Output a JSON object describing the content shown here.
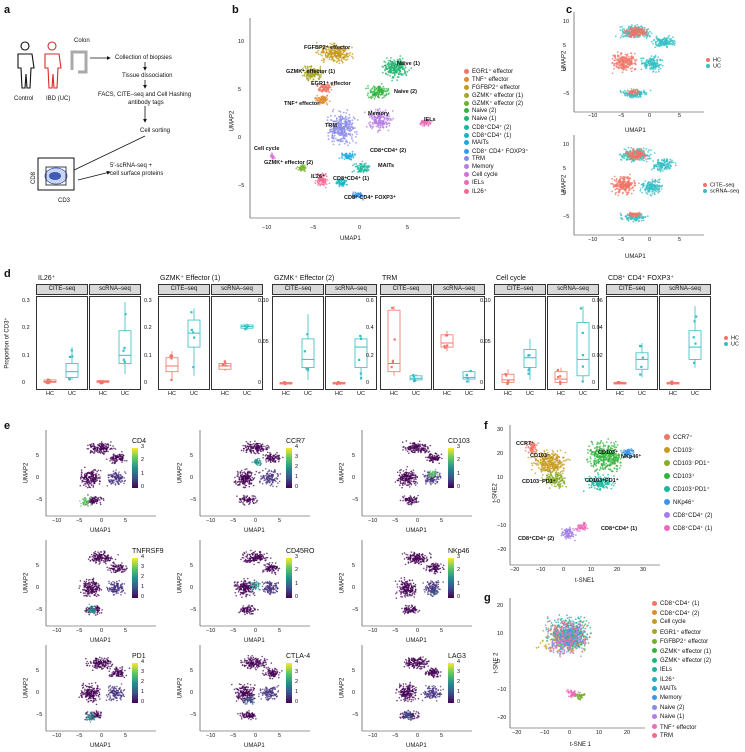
{
  "panel_a": {
    "label": "a",
    "colon": "Colon",
    "control": "Control",
    "ibd": "IBD (UC)",
    "steps": [
      "Collection of biopsies",
      "Tissue dissociation",
      "FACS, CITE–seq and Cell Hashing",
      "antibody tags",
      "Cell sorting",
      "5′-scRNA-seq +",
      "cell surface proteins"
    ],
    "cd8": "CD8",
    "cd3": "CD3"
  },
  "panel_b": {
    "label": "b",
    "ylabel": "UMAP2",
    "xlabel": "UMAP1",
    "yticks": [
      "10",
      "5",
      "0",
      "−5"
    ],
    "xticks": [
      "−10",
      "−5",
      "0",
      "5"
    ],
    "cluster_labels": [
      "FGFBP2⁺ effector",
      "GZMK⁺ effector (1)",
      "EGR1⁺ effector",
      "TNF⁺ effector",
      "Naive (1)",
      "Naive (2)",
      "TRM",
      "Memory",
      "IELs",
      "Cell cycle",
      "CD8⁺CD4⁺ (2)",
      "MAITs",
      "GZMK⁺ effector (2)",
      "IL26⁺",
      "CD8⁺CD4⁺ (1)",
      "CD8⁺ CD4⁺ FOXP3⁺"
    ],
    "legend": [
      {
        "label": "EGR1⁺ effector",
        "color": "#f07467"
      },
      {
        "label": "TNF⁺ effector",
        "color": "#e08a2e"
      },
      {
        "label": "FGFBP2⁺ effector",
        "color": "#c79a1e"
      },
      {
        "label": "GZMK⁺ effector (1)",
        "color": "#a5a628"
      },
      {
        "label": "GZMK⁺ effector (2)",
        "color": "#72b02a"
      },
      {
        "label": "Naive (2)",
        "color": "#34b33e"
      },
      {
        "label": "Naive (1)",
        "color": "#1fb46f"
      },
      {
        "label": "CD8⁺CD4⁺ (2)",
        "color": "#1bb59c"
      },
      {
        "label": "CD8⁺CD4⁺ (1)",
        "color": "#16b4c2"
      },
      {
        "label": "MAITs",
        "color": "#1ba9e0"
      },
      {
        "label": "CD8⁺ CD4⁺ FOXP3⁺",
        "color": "#3d95e8"
      },
      {
        "label": "TRM",
        "color": "#8a89e8"
      },
      {
        "label": "Memory",
        "color": "#b67de6"
      },
      {
        "label": "Cell cycle",
        "color": "#d96fd6"
      },
      {
        "label": "IELs",
        "color": "#ec6bb8"
      },
      {
        "label": "IL26⁺",
        "color": "#f06b93"
      }
    ]
  },
  "panel_c": {
    "label": "c",
    "ylabel": "UMAP2",
    "xlabel": "UMAP1",
    "xticks": [
      "−10",
      "−5",
      "0",
      "5"
    ],
    "yticks": [
      "10",
      "5",
      "0",
      "−5"
    ],
    "legend_top": [
      {
        "label": "HC",
        "color": "#f07467"
      },
      {
        "label": "UC",
        "color": "#33bfc4"
      }
    ],
    "legend_bottom": [
      {
        "label": "CITE–seq",
        "color": "#f07467"
      },
      {
        "label": "scRNA–seq",
        "color": "#33bfc4"
      }
    ]
  },
  "panel_d": {
    "label": "d",
    "ylabel": "Proportion of CD3⁺",
    "groups": [
      {
        "title": "IL26⁺",
        "yticks": [
          "0.3",
          "0.2",
          "0.1",
          "0"
        ]
      },
      {
        "title": "GZMK⁺ Effector (1)",
        "yticks": [
          "0.3",
          "0.2",
          "0.1",
          "0"
        ]
      },
      {
        "title": "GZMK⁺ Effector (2)",
        "yticks": [
          "0.10",
          "0.05",
          "0"
        ]
      },
      {
        "title": "TRM",
        "yticks": [
          "0.6",
          "0.4",
          "0.2",
          "0"
        ]
      },
      {
        "title": "Cell cycle",
        "yticks": [
          "0.10",
          "0.05",
          "0"
        ]
      },
      {
        "title": "CD8⁺ CD4⁺ FOXP3⁺",
        "yticks": [
          "0.06",
          "0.04",
          "0.02",
          "0"
        ]
      }
    ],
    "facets": [
      "CITE–seq",
      "scRNA–seq"
    ],
    "xcats": [
      "HC",
      "UC"
    ],
    "legend": [
      {
        "label": "HC",
        "color": "#f07467"
      },
      {
        "label": "UC",
        "color": "#33bfc4"
      }
    ]
  },
  "panel_e": {
    "label": "e",
    "ylabel": "UMAP2",
    "xlabel": "UMAP1",
    "xticks": [
      "−10",
      "−5",
      "0",
      "5"
    ],
    "yticks": [
      "5",
      "0",
      "−5"
    ],
    "markers": [
      {
        "name": "CD4",
        "scale": [
          "3",
          "2",
          "1",
          "0"
        ]
      },
      {
        "name": "CCR7",
        "scale": [
          "4",
          "3",
          "2",
          "1",
          "0"
        ]
      },
      {
        "name": "CD103",
        "scale": [
          "3",
          "2",
          "1",
          "0"
        ]
      },
      {
        "name": "TNFRSF9",
        "scale": [
          "4",
          "3",
          "2",
          "1",
          "0"
        ]
      },
      {
        "name": "CD45RO",
        "scale": [
          "3",
          "2",
          "1",
          "0"
        ]
      },
      {
        "name": "NKp46",
        "scale": [
          "3",
          "2",
          "1",
          "0"
        ]
      },
      {
        "name": "PD1",
        "scale": [
          "4",
          "3",
          "2",
          "1",
          "0"
        ]
      },
      {
        "name": "CTLA-4",
        "scale": [
          "4",
          "3",
          "2",
          "1",
          "0"
        ]
      },
      {
        "name": "LAG3",
        "scale": [
          "4",
          "3",
          "2",
          "1",
          "0"
        ]
      }
    ]
  },
  "panel_f": {
    "label": "f",
    "ylabel": "t-SNE2",
    "xlabel": "t-SNE1",
    "xticks": [
      "−20",
      "−10",
      "0",
      "10",
      "20",
      "30"
    ],
    "yticks": [
      "30",
      "20",
      "10",
      "0",
      "−10",
      "−20"
    ],
    "cluster_labels": [
      "CCR7⁺",
      "CD103⁻",
      "CD103⁺",
      "NKp46⁺",
      "CD103⁻PD1⁺",
      "CD103⁺PD1⁺",
      "CD8⁺CD4⁺ (1)",
      "CD8⁺CD4⁺ (2)"
    ],
    "legend": [
      {
        "label": "CCR7⁺",
        "color": "#f07467"
      },
      {
        "label": "CD103⁻",
        "color": "#c79a1e"
      },
      {
        "label": "CD103⁻PD1⁺",
        "color": "#8aac2a"
      },
      {
        "label": "CD103⁺",
        "color": "#34b33e"
      },
      {
        "label": "CD103⁺PD1⁺",
        "color": "#1bb59c"
      },
      {
        "label": "NKp46⁺",
        "color": "#3d95e8"
      },
      {
        "label": "CD8⁺CD4⁺ (2)",
        "color": "#a27fe6"
      },
      {
        "label": "CD8⁺CD4⁺ (1)",
        "color": "#ec6bb8"
      }
    ]
  },
  "panel_g": {
    "label": "g",
    "ylabel": "t-SNE 2",
    "xlabel": "t-SNE 1",
    "xticks": [
      "−20",
      "−10",
      "0",
      "10",
      "20"
    ],
    "yticks": [
      "20",
      "10",
      "0",
      "−10",
      "−20"
    ],
    "legend": [
      {
        "label": "CD8⁺CD4⁺ (1)",
        "color": "#f07467"
      },
      {
        "label": "CD8⁺CD4⁺ (2)",
        "color": "#e08a2e"
      },
      {
        "label": "Cell cycle",
        "color": "#c79a1e"
      },
      {
        "label": "EGR1⁺ effector",
        "color": "#a5a628"
      },
      {
        "label": "FGFBP2⁺ effector",
        "color": "#72b02a"
      },
      {
        "label": "GZMK⁺ effector (1)",
        "color": "#34b33e"
      },
      {
        "label": "GZMK⁺ effector (2)",
        "color": "#1fb46f"
      },
      {
        "label": "IELs",
        "color": "#1bb59c"
      },
      {
        "label": "IL26⁺",
        "color": "#16b4c2"
      },
      {
        "label": "MAITs",
        "color": "#1ba9e0"
      },
      {
        "label": "Memory",
        "color": "#3d95e8"
      },
      {
        "label": "Naive (2)",
        "color": "#8a89e8"
      },
      {
        "label": "Naive (1)",
        "color": "#b67de6"
      },
      {
        "label": "TNF⁺ effector",
        "color": "#ec6bb8"
      },
      {
        "label": "TRM",
        "color": "#f06b93"
      }
    ]
  }
}
